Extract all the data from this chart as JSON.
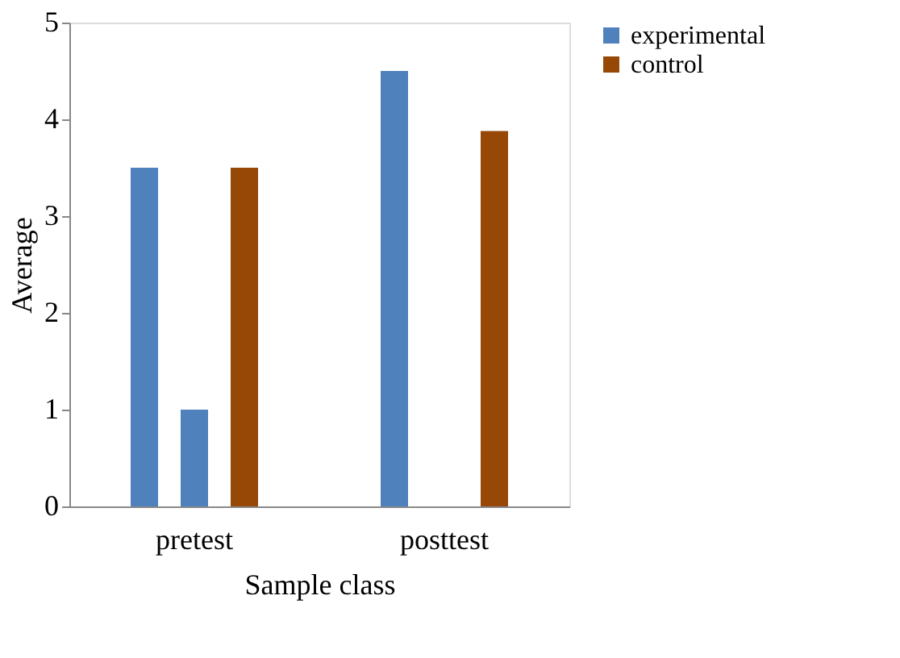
{
  "chart_data": {
    "type": "bar",
    "xlabel": "Sample class",
    "ylabel": "Average",
    "categories": [
      "pretest",
      "posttest"
    ],
    "series": [
      {
        "name": "experimental",
        "color": "#4f81bd",
        "values": [
          3.5,
          4.5
        ]
      },
      {
        "color": "#4f81bd",
        "values": [
          1.0,
          null
        ]
      },
      {
        "name": "control",
        "color": "#974706",
        "values": [
          3.5,
          3.88
        ]
      }
    ],
    "ylim": [
      0,
      5
    ],
    "yticks": [
      0,
      1,
      2,
      3,
      4,
      5
    ],
    "grid": false,
    "legend": "right"
  }
}
